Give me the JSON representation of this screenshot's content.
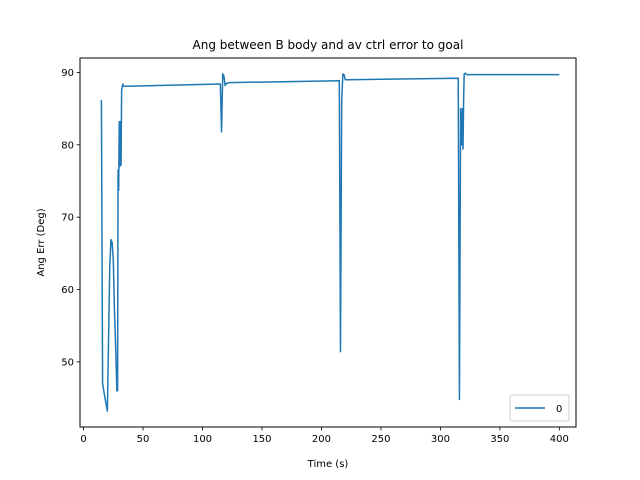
{
  "chart_data": {
    "type": "line",
    "title": "Ang between B body and av ctrl error to goal",
    "xlabel": "Time (s)",
    "ylabel": "Ang Err (Deg)",
    "xlim": [
      -3,
      414
    ],
    "ylim": [
      41,
      92
    ],
    "xticks": [
      0,
      50,
      100,
      150,
      200,
      250,
      300,
      350,
      400
    ],
    "yticks": [
      50,
      60,
      70,
      80,
      90
    ],
    "grid": false,
    "legend_position": "lower right",
    "series": [
      {
        "name": "0",
        "color": "#1f77b4",
        "x": [
          15,
          16,
          18,
          20,
          22,
          23,
          24,
          25,
          26,
          27,
          28,
          28.6,
          29,
          29.5,
          30,
          30.5,
          31,
          31.5,
          32,
          32.5,
          33,
          33.5,
          34,
          35,
          36,
          115,
          116,
          117,
          118,
          119,
          120,
          121,
          122,
          123,
          215,
          216,
          217,
          218,
          219,
          220,
          221,
          222,
          315,
          316,
          317,
          318,
          318.5,
          319,
          319.5,
          320,
          321,
          322,
          323,
          324,
          400
        ],
        "y": [
          86.2,
          47,
          45,
          43.2,
          63,
          66.9,
          66.5,
          64,
          57,
          52,
          46,
          46,
          76.5,
          73.7,
          83.2,
          77,
          83.2,
          77.2,
          87.5,
          88,
          88.4,
          88.1,
          88.1,
          88.1,
          88.1,
          88.4,
          81.8,
          89.8,
          89.5,
          88.2,
          88.5,
          88.5,
          88.6,
          88.6,
          88.85,
          51.4,
          86,
          89.8,
          89.7,
          89,
          89,
          89,
          89.2,
          44.8,
          85,
          80,
          85,
          79.4,
          86,
          89.8,
          89.9,
          89.7,
          89.7,
          89.7,
          89.7
        ]
      }
    ]
  }
}
